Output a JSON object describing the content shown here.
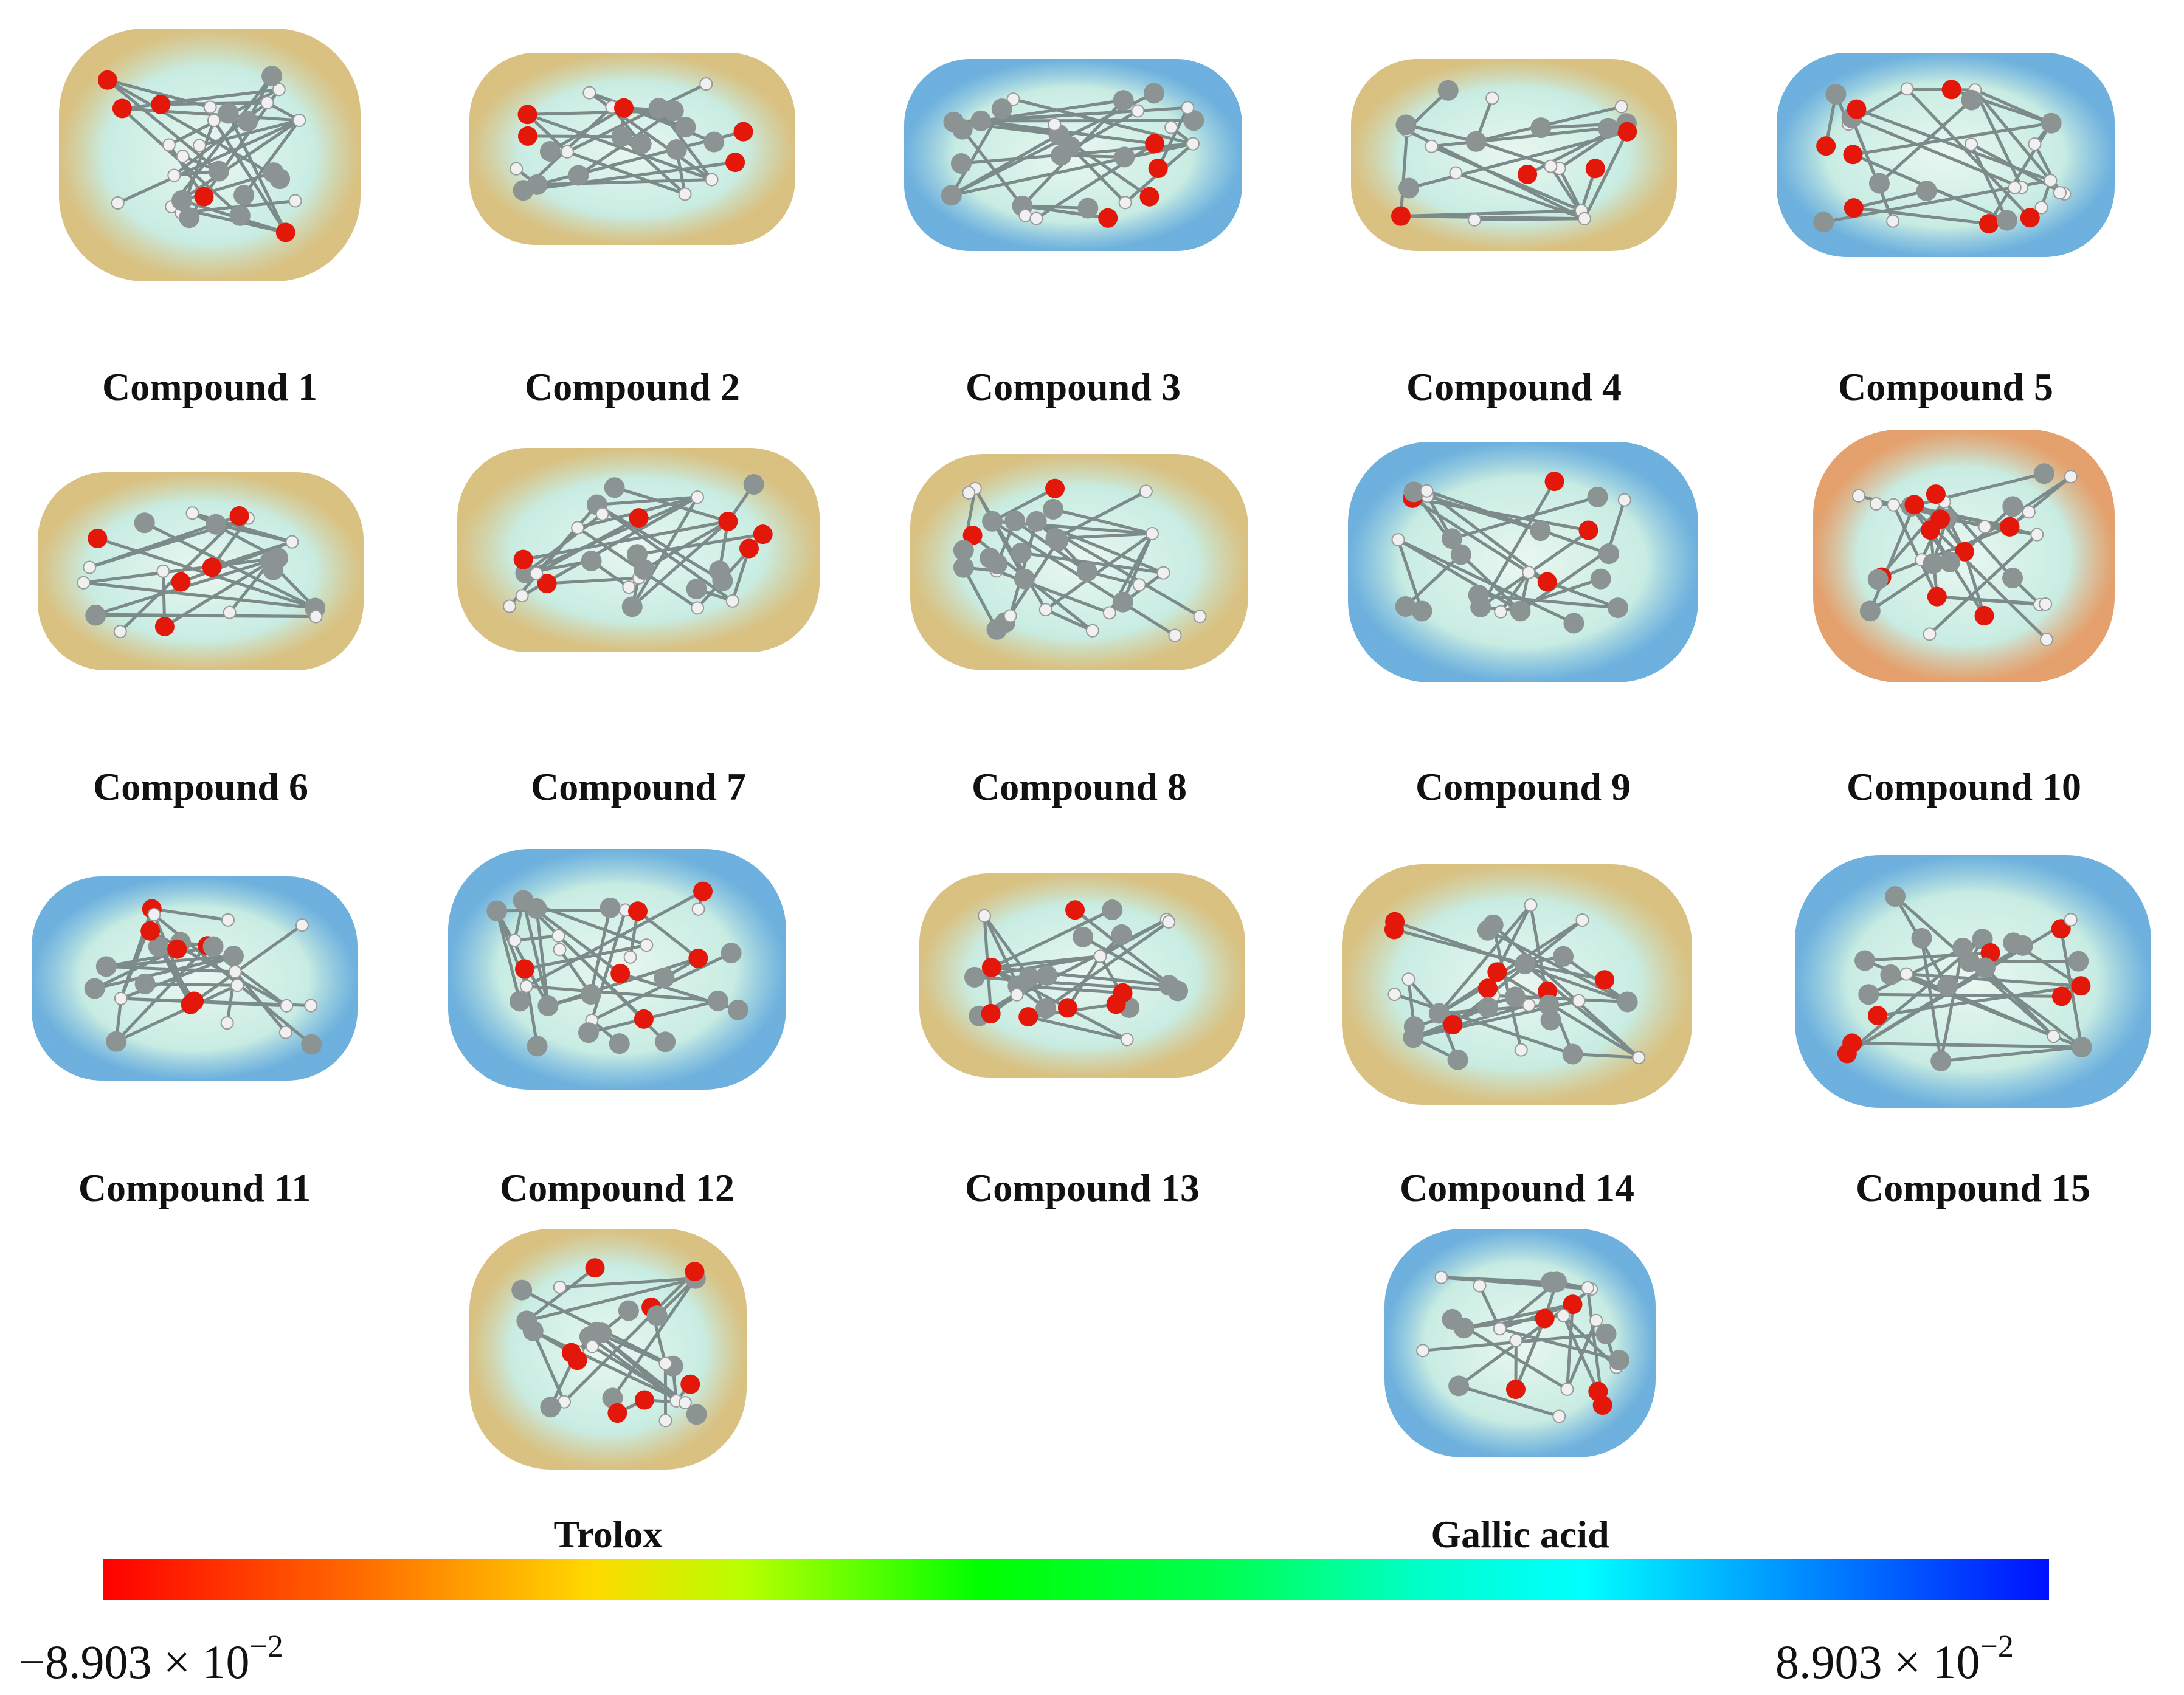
{
  "figure": {
    "molecules": [
      {
        "label": "Compound 1",
        "shape": "compound-1-surface",
        "accent": "#c9a64b"
      },
      {
        "label": "Compound 2",
        "shape": "compound-2-surface",
        "accent": "#c9a64b"
      },
      {
        "label": "Compound 3",
        "shape": "compound-3-surface",
        "accent": "#2f8fd0"
      },
      {
        "label": "Compound 4",
        "shape": "compound-4-surface",
        "accent": "#c9a64b"
      },
      {
        "label": "Compound 5",
        "shape": "compound-5-surface",
        "accent": "#2f8fd0"
      },
      {
        "label": "Compound 6",
        "shape": "compound-6-surface",
        "accent": "#c9a64b"
      },
      {
        "label": "Compound 7",
        "shape": "compound-7-surface",
        "accent": "#c9a64b"
      },
      {
        "label": "Compound 8",
        "shape": "compound-8-surface",
        "accent": "#c9a64b"
      },
      {
        "label": "Compound 9",
        "shape": "compound-9-surface",
        "accent": "#2f8fd0"
      },
      {
        "label": "Compound 10",
        "shape": "compound-10-surface",
        "accent": "#d9782e"
      },
      {
        "label": "Compound 11",
        "shape": "compound-11-surface",
        "accent": "#2f8fd0"
      },
      {
        "label": "Compound 12",
        "shape": "compound-12-surface",
        "accent": "#2f8fd0"
      },
      {
        "label": "Compound 13",
        "shape": "compound-13-surface",
        "accent": "#c9a64b"
      },
      {
        "label": "Compound 14",
        "shape": "compound-14-surface",
        "accent": "#c9a64b"
      },
      {
        "label": "Compound 15",
        "shape": "compound-15-surface",
        "accent": "#2f8fd0"
      },
      {
        "label": "Trolox",
        "shape": "trolox-surface",
        "accent": "#c9a64b"
      },
      {
        "label": "Gallic acid",
        "shape": "gallic-acid-surface",
        "accent": "#2f8fd0"
      }
    ],
    "colorbar": {
      "min_label": "−8.903 × 10",
      "min_exponent": "−2",
      "max_label": "8.903 × 10",
      "max_exponent": "−2",
      "colors": [
        "#ff0000",
        "#ffd800",
        "#00ff00",
        "#00ffff",
        "#0010ff"
      ]
    }
  }
}
